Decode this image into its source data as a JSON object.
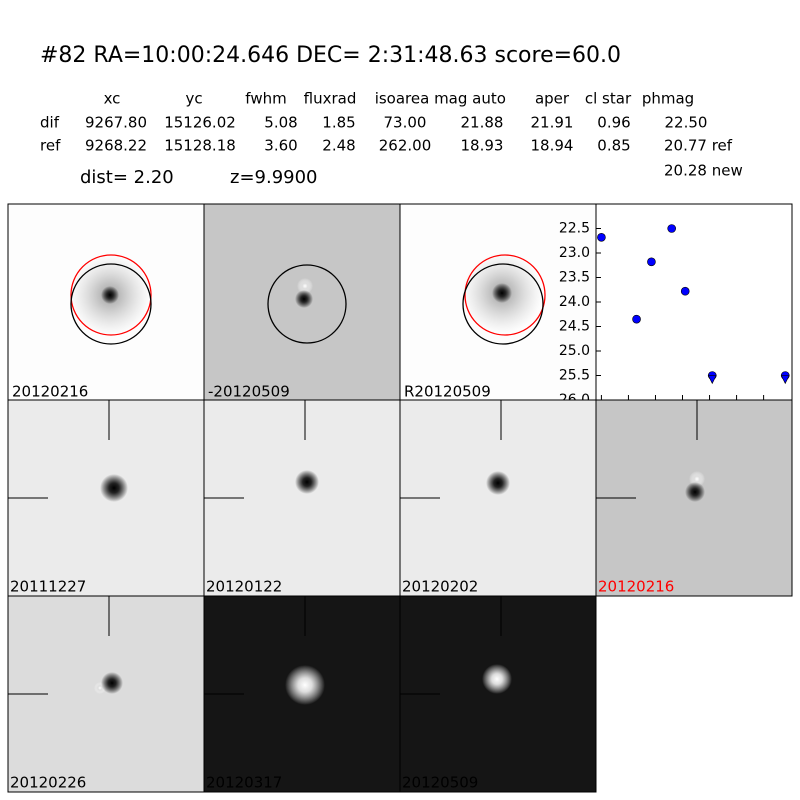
{
  "header": {
    "title": "#82   RA=10:00:24.646 DEC= 2:31:48.63      score=60.0"
  },
  "table": {
    "columns": [
      "xc",
      "yc",
      "fwhm",
      "fluxrad",
      "isoarea",
      "mag auto",
      "aper",
      "cl star",
      "phmag"
    ],
    "rows": [
      [
        "dif",
        "9267.80",
        "15126.02",
        "5.08",
        "1.85",
        "73.00",
        "21.88",
        "21.91",
        "0.96",
        "22.50"
      ],
      [
        "ref",
        "9268.22",
        "15128.18",
        "3.60",
        "2.48",
        "262.00",
        "18.93",
        "18.94",
        "0.85",
        "20.77 ref"
      ]
    ],
    "extra": "20.28 new"
  },
  "dist": "dist=  2.20",
  "z": "z=9.9900",
  "panels": [
    {
      "label": "20120216"
    },
    {
      "label": "-20120509"
    },
    {
      "label": "R20120509"
    },
    {
      "label": "20111227"
    },
    {
      "label": "20120122"
    },
    {
      "label": "20120202"
    },
    {
      "label": "20120216"
    },
    {
      "label": "20120226"
    },
    {
      "label": "20120317"
    },
    {
      "label": "20120509"
    }
  ],
  "chart_data": {
    "type": "scatter",
    "series": [
      {
        "color": "#0000ff",
        "marker": "circle",
        "x": [
          0,
          26,
          37,
          52,
          62,
          82,
          136
        ],
        "values": [
          22.68,
          24.35,
          23.18,
          22.5,
          23.78,
          25.5,
          25.5
        ]
      },
      {
        "color": "#0000ff",
        "marker": "triangle-down",
        "x": [
          82,
          136
        ],
        "values": [
          25.58,
          25.58
        ]
      }
    ],
    "xlim": [
      -4,
      141
    ],
    "xticks": [
      0,
      20,
      40,
      60,
      80,
      100,
      120
    ],
    "ylim": [
      26.0,
      22.0
    ],
    "yticks": [
      {
        "value": 22.5,
        "label": "22.5"
      },
      {
        "value": 23,
        "label": "23.0"
      },
      {
        "value": 23.5,
        "label": "23.5"
      },
      {
        "value": 24,
        "label": "24.0"
      },
      {
        "value": 24.5,
        "label": "24.5"
      },
      {
        "value": 25,
        "label": "25.0"
      },
      {
        "value": 25.5,
        "label": "25.5"
      },
      {
        "value": 26,
        "label": "26.0"
      }
    ]
  }
}
